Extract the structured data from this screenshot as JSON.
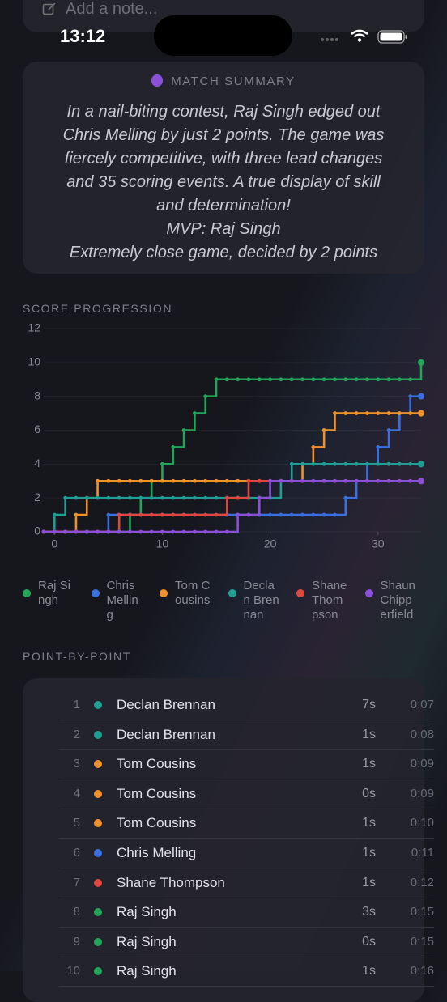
{
  "status_bar": {
    "time": "13:12"
  },
  "note": {
    "placeholder": "Add a note..."
  },
  "summary": {
    "title": "MATCH SUMMARY",
    "text": "In a nail-biting contest, Raj Singh edged out Chris Melling by just 2 points. The game was fiercely competitive, with three lead changes and 35 scoring events. A true display of skill and determination!",
    "mvp": "MVP: Raj Singh",
    "note": "Extremely close game, decided by 2 points"
  },
  "chart_data": {
    "type": "line",
    "title": "SCORE PROGRESSION",
    "step": true,
    "grid": true,
    "markers": true,
    "x": [
      -1,
      0,
      1,
      2,
      3,
      4,
      5,
      6,
      7,
      8,
      9,
      10,
      11,
      12,
      13,
      14,
      15,
      16,
      17,
      18,
      19,
      20,
      21,
      22,
      23,
      24,
      25,
      26,
      27,
      28,
      29,
      30,
      31,
      32,
      33,
      34
    ],
    "xlim": [
      -1,
      34
    ],
    "xticks": [
      0,
      10,
      20,
      30
    ],
    "ylim": [
      0,
      12
    ],
    "yticks": [
      0,
      2,
      4,
      6,
      8,
      10,
      12
    ],
    "series": [
      {
        "name": "Raj Singh",
        "color": "#22a55b",
        "values": [
          0,
          0,
          0,
          0,
          0,
          0,
          0,
          0,
          1,
          2,
          3,
          4,
          5,
          6,
          7,
          8,
          9,
          9,
          9,
          9,
          9,
          9,
          9,
          9,
          9,
          9,
          9,
          9,
          9,
          9,
          9,
          9,
          9,
          9,
          9,
          10
        ]
      },
      {
        "name": "Chris Melling",
        "color": "#3b6fe0",
        "values": [
          0,
          0,
          0,
          0,
          0,
          0,
          1,
          1,
          1,
          1,
          1,
          1,
          1,
          1,
          1,
          1,
          1,
          1,
          1,
          1,
          1,
          1,
          1,
          1,
          1,
          1,
          1,
          1,
          2,
          3,
          4,
          5,
          6,
          7,
          8,
          8
        ]
      },
      {
        "name": "Tom Cousins",
        "color": "#f0922c",
        "values": [
          0,
          0,
          0,
          1,
          2,
          3,
          3,
          3,
          3,
          3,
          3,
          3,
          3,
          3,
          3,
          3,
          3,
          3,
          3,
          3,
          3,
          3,
          3,
          3,
          4,
          5,
          6,
          7,
          7,
          7,
          7,
          7,
          7,
          7,
          7,
          7
        ]
      },
      {
        "name": "Declan Brennan",
        "color": "#1f9e94",
        "values": [
          0,
          1,
          2,
          2,
          2,
          2,
          2,
          2,
          2,
          2,
          2,
          2,
          2,
          2,
          2,
          2,
          2,
          2,
          2,
          2,
          2,
          2,
          3,
          4,
          4,
          4,
          4,
          4,
          4,
          4,
          4,
          4,
          4,
          4,
          4,
          4
        ]
      },
      {
        "name": "Shane Thompson",
        "color": "#e0473f",
        "values": [
          0,
          0,
          0,
          0,
          0,
          0,
          0,
          1,
          1,
          1,
          1,
          1,
          1,
          1,
          1,
          1,
          1,
          2,
          2,
          3,
          3,
          3,
          3,
          3,
          3,
          3,
          3,
          3,
          3,
          3,
          3,
          3,
          3,
          3,
          3,
          3
        ]
      },
      {
        "name": "Shaun Chipperfield",
        "color": "#8b4fd8",
        "values": [
          0,
          0,
          0,
          0,
          0,
          0,
          0,
          0,
          0,
          0,
          0,
          0,
          0,
          0,
          0,
          0,
          0,
          0,
          1,
          1,
          2,
          3,
          3,
          3,
          3,
          3,
          3,
          3,
          3,
          3,
          3,
          3,
          3,
          3,
          3,
          3
        ]
      }
    ]
  },
  "point_by_point": {
    "title": "POINT-BY-POINT",
    "rows": [
      {
        "n": 1,
        "player": "Declan Brennan",
        "duration": "7s",
        "time": "0:07"
      },
      {
        "n": 2,
        "player": "Declan Brennan",
        "duration": "1s",
        "time": "0:08"
      },
      {
        "n": 3,
        "player": "Tom Cousins",
        "duration": "1s",
        "time": "0:09"
      },
      {
        "n": 4,
        "player": "Tom Cousins",
        "duration": "0s",
        "time": "0:09"
      },
      {
        "n": 5,
        "player": "Tom Cousins",
        "duration": "1s",
        "time": "0:10"
      },
      {
        "n": 6,
        "player": "Chris Melling",
        "duration": "1s",
        "time": "0:11"
      },
      {
        "n": 7,
        "player": "Shane Thompson",
        "duration": "1s",
        "time": "0:12"
      },
      {
        "n": 8,
        "player": "Raj Singh",
        "duration": "3s",
        "time": "0:15"
      },
      {
        "n": 9,
        "player": "Raj Singh",
        "duration": "0s",
        "time": "0:15"
      },
      {
        "n": 10,
        "player": "Raj Singh",
        "duration": "1s",
        "time": "0:16"
      }
    ]
  }
}
